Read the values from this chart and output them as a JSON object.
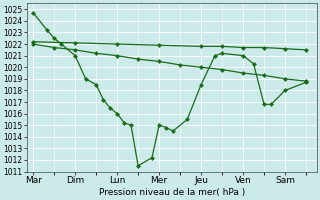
{
  "xlabel": "Pression niveau de la mer( hPa )",
  "background_color": "#cceaea",
  "grid_color": "#ffffff",
  "line_color": "#1a6b1a",
  "ylim": [
    1011,
    1025.5
  ],
  "yticks": [
    1011,
    1012,
    1013,
    1014,
    1015,
    1016,
    1017,
    1018,
    1019,
    1020,
    1021,
    1022,
    1023,
    1024,
    1025
  ],
  "days": [
    "Mar",
    "Dim",
    "Lun",
    "Mer",
    "Jeu",
    "Ven",
    "Sam"
  ],
  "day_x": [
    0,
    1,
    2,
    3,
    4,
    5,
    6
  ],
  "sa_x": [
    0,
    1,
    2,
    3,
    4,
    4.5,
    5,
    5.5,
    6,
    6.5
  ],
  "sa_y": [
    1022.2,
    1022.1,
    1022.0,
    1021.9,
    1021.8,
    1021.8,
    1021.7,
    1021.7,
    1021.6,
    1021.5
  ],
  "sb_x": [
    0,
    0.5,
    1,
    1.5,
    2,
    2.5,
    3,
    3.5,
    4,
    4.5,
    5,
    5.5,
    6,
    6.5
  ],
  "sb_y": [
    1022.0,
    1021.7,
    1021.5,
    1021.2,
    1021.0,
    1020.7,
    1020.5,
    1020.2,
    1020.0,
    1019.8,
    1019.5,
    1019.3,
    1019.0,
    1018.8
  ],
  "sc_x": [
    0,
    0.33,
    0.5,
    0.67,
    1.0,
    1.25,
    1.5,
    1.67,
    1.83,
    2.0,
    2.17,
    2.33,
    2.5,
    2.83,
    3.0,
    3.17,
    3.33,
    3.67,
    4.0,
    4.33,
    4.5,
    5.0,
    5.25,
    5.5,
    5.67,
    6.0,
    6.5
  ],
  "sc_y": [
    1024.7,
    1023.2,
    1022.5,
    1022.0,
    1021.0,
    1019.0,
    1018.5,
    1017.2,
    1016.5,
    1016.0,
    1015.2,
    1015.0,
    1011.5,
    1012.2,
    1015.0,
    1014.8,
    1014.5,
    1015.5,
    1018.5,
    1021.0,
    1021.2,
    1021.0,
    1020.3,
    1016.8,
    1016.8,
    1018.0,
    1018.7
  ],
  "marker_size": 2.5,
  "linewidth": 0.9
}
